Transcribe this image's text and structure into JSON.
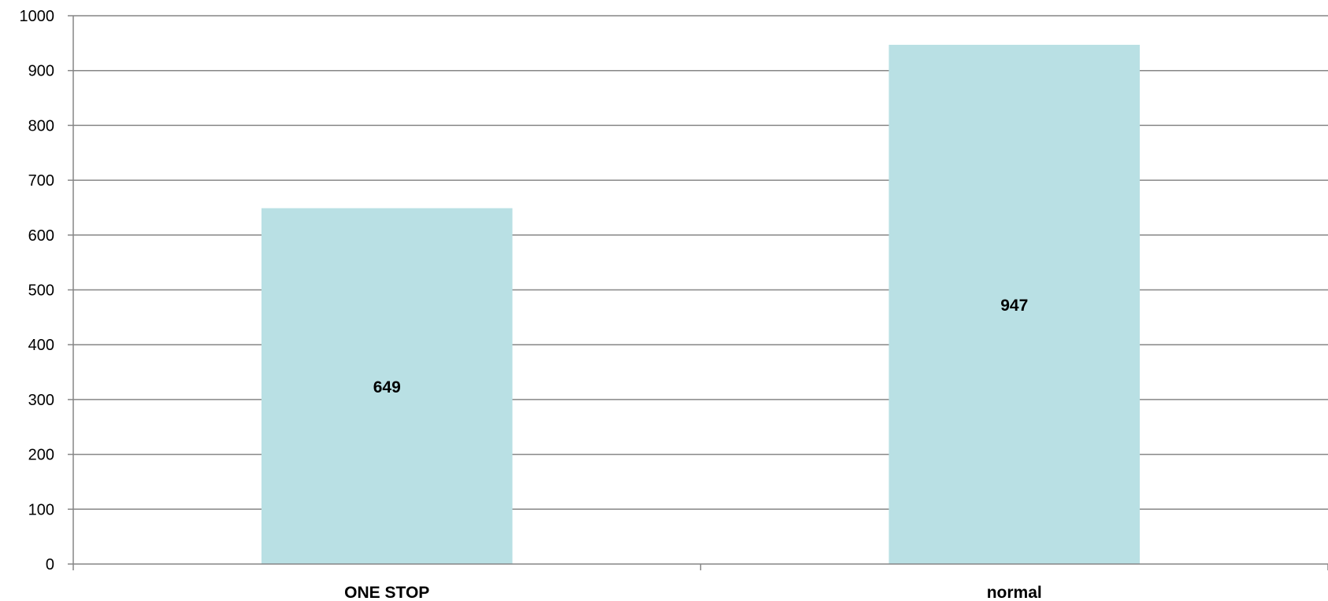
{
  "chart_data": {
    "type": "bar",
    "title": "",
    "xlabel": "",
    "ylabel": "",
    "categories": [
      "ONE STOP",
      "normal"
    ],
    "values": [
      649,
      947
    ],
    "data_labels": [
      "649",
      "947"
    ],
    "ylim": [
      0,
      1000
    ],
    "y_ticks": [
      0,
      100,
      200,
      300,
      400,
      500,
      600,
      700,
      800,
      900,
      1000
    ],
    "grid": true,
    "legend": "none",
    "bar_color": "#b9e0e4"
  }
}
